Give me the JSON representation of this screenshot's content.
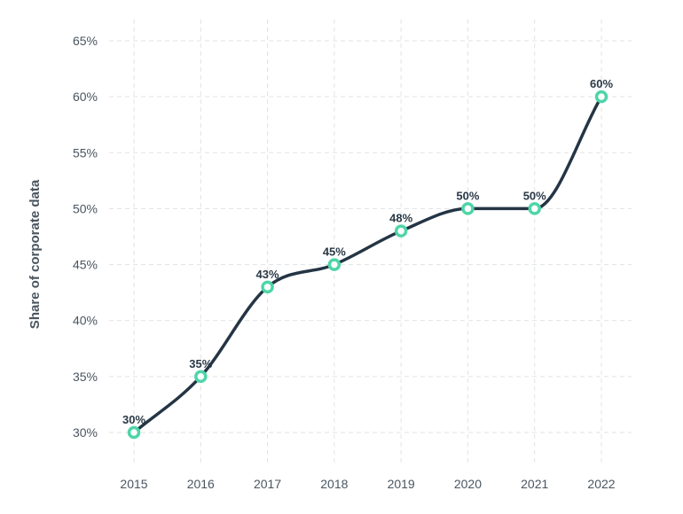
{
  "chart_data": {
    "type": "line",
    "title": "",
    "xlabel": "",
    "ylabel": "Share of corporate data",
    "categories": [
      "2015",
      "2016",
      "2017",
      "2018",
      "2019",
      "2020",
      "2021",
      "2022"
    ],
    "series": [
      {
        "values": [
          30,
          35,
          43,
          45,
          48,
          50,
          50,
          60
        ],
        "labels": [
          "30%",
          "35%",
          "43%",
          "45%",
          "48%",
          "50%",
          "50%",
          "60%"
        ]
      }
    ],
    "ylim": [
      27,
      66
    ],
    "yticks": [
      30,
      35,
      40,
      45,
      50,
      55,
      60,
      65
    ],
    "ytick_labels": [
      "30%",
      "35%",
      "40%",
      "45%",
      "50%",
      "55%",
      "60%",
      "65%"
    ],
    "grid": true,
    "colors": {
      "line": "#243545",
      "marker_stroke": "#4ed5a8",
      "marker_fill": "#ffffff"
    }
  }
}
